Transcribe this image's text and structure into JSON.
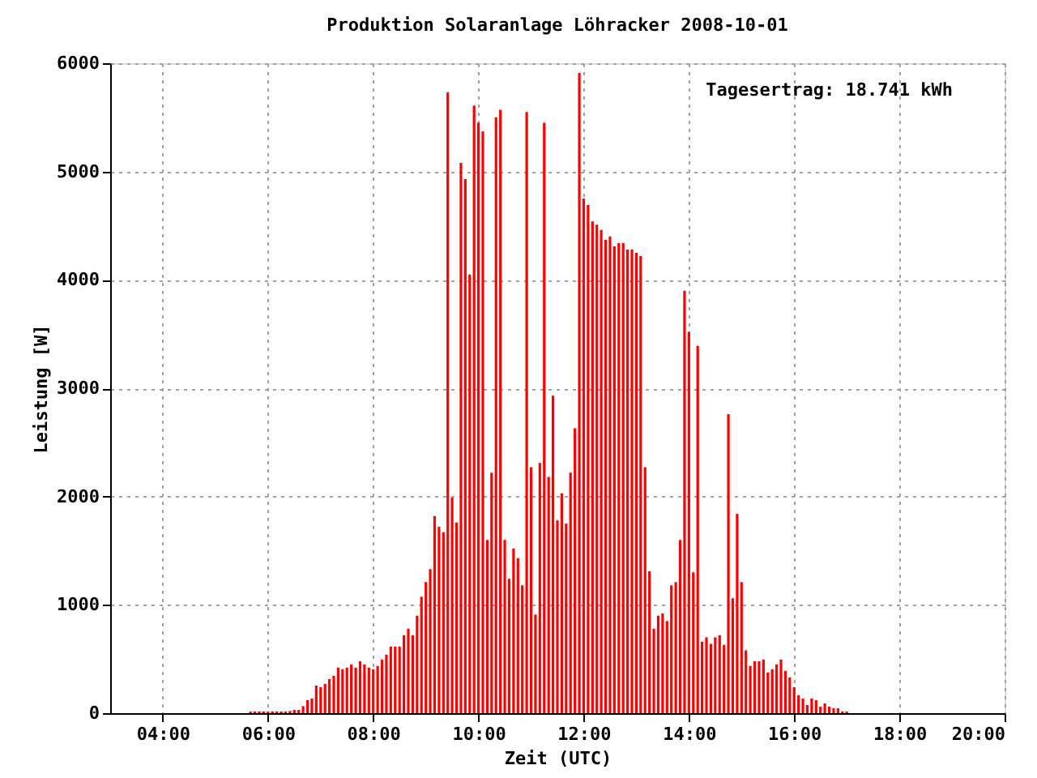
{
  "chart_data": {
    "type": "bar",
    "title": "Produktion Solaranlage Löhracker 2008-10-01",
    "xlabel": "Zeit (UTC)",
    "ylabel": "Leistung [W]",
    "annotations": [
      "Tagesertrag: 18.741 kWh"
    ],
    "x": [
      5.6667,
      5.75,
      5.8333,
      5.9167,
      6,
      6.0833,
      6.1667,
      6.25,
      6.3333,
      6.4167,
      6.5,
      6.5833,
      6.6667,
      6.75,
      6.8333,
      6.9167,
      7,
      7.0833,
      7.1667,
      7.25,
      7.3333,
      7.4167,
      7.5,
      7.5833,
      7.6667,
      7.75,
      7.8333,
      7.9167,
      8,
      8.0833,
      8.1667,
      8.25,
      8.3333,
      8.4167,
      8.5,
      8.5833,
      8.6667,
      8.75,
      8.8333,
      8.9167,
      9,
      9.0833,
      9.1667,
      9.25,
      9.3333,
      9.4167,
      9.5,
      9.5833,
      9.6667,
      9.75,
      9.8333,
      9.9167,
      10,
      10.0833,
      10.1667,
      10.25,
      10.3333,
      10.4167,
      10.5,
      10.5833,
      10.6667,
      10.75,
      10.8333,
      10.9167,
      11,
      11.0833,
      11.1667,
      11.25,
      11.3333,
      11.4167,
      11.5,
      11.5833,
      11.6667,
      11.75,
      11.8333,
      11.9167,
      12,
      12.0833,
      12.1667,
      12.25,
      12.3333,
      12.4167,
      12.5,
      12.5833,
      12.6667,
      12.75,
      12.8333,
      12.9167,
      13,
      13.0833,
      13.1667,
      13.25,
      13.3333,
      13.4167,
      13.5,
      13.5833,
      13.6667,
      13.75,
      13.8333,
      13.9167,
      14,
      14.0833,
      14.1667,
      14.25,
      14.3333,
      14.4167,
      14.5,
      14.5833,
      14.6667,
      14.75,
      14.8333,
      14.9167,
      15,
      15.0833,
      15.1667,
      15.25,
      15.3333,
      15.4167,
      15.5,
      15.5833,
      15.6667,
      15.75,
      15.8333,
      15.9167,
      16,
      16.0833,
      16.1667,
      16.25,
      16.3333,
      16.4167,
      16.5,
      16.5833,
      16.6667,
      16.75,
      16.8333,
      16.9167,
      17
    ],
    "series": [
      {
        "color": "#ff0000",
        "values": [
          15,
          15,
          15,
          15,
          15,
          15,
          15,
          15,
          15,
          20,
          30,
          30,
          65,
          120,
          135,
          255,
          240,
          270,
          315,
          345,
          420,
          405,
          420,
          450,
          420,
          480,
          450,
          420,
          405,
          435,
          495,
          540,
          615,
          615,
          615,
          720,
          780,
          720,
          900,
          1075,
          1210,
          1330,
          1820,
          1720,
          1670,
          5730,
          1990,
          1760,
          5080,
          4930,
          4050,
          5610,
          5450,
          5370,
          1600,
          2220,
          5500,
          5570,
          1600,
          1240,
          1520,
          1430,
          1180,
          5550,
          2270,
          910,
          2310,
          5450,
          2180,
          2930,
          1780,
          2030,
          1750,
          2220,
          2630,
          5910,
          4750,
          4690,
          4540,
          4510,
          4460,
          4370,
          4400,
          4310,
          4340,
          4340,
          4280,
          4280,
          4250,
          4220,
          2270,
          1310,
          780,
          900,
          920,
          850,
          1180,
          1210,
          1600,
          3900,
          3520,
          1300,
          3390,
          660,
          700,
          640,
          700,
          720,
          630,
          2760,
          1060,
          1840,
          1210,
          580,
          435,
          480,
          480,
          495,
          375,
          405,
          450,
          495,
          390,
          330,
          240,
          165,
          135,
          75,
          135,
          120,
          60,
          90,
          60,
          45,
          45,
          15,
          15
        ]
      }
    ],
    "xlim": [
      3,
      20
    ],
    "xticks": [
      {
        "value": 4,
        "label": "04:00"
      },
      {
        "value": 6,
        "label": "06:00"
      },
      {
        "value": 8,
        "label": "08:00"
      },
      {
        "value": 10,
        "label": "10:00"
      },
      {
        "value": 12,
        "label": "12:00"
      },
      {
        "value": 14,
        "label": "14:00"
      },
      {
        "value": 16,
        "label": "16:00"
      },
      {
        "value": 18,
        "label": "18:00"
      },
      {
        "value": 20,
        "label": "20:00"
      }
    ],
    "ylim": [
      0,
      6000
    ],
    "yticks": [
      0,
      1000,
      2000,
      3000,
      4000,
      5000,
      6000
    ],
    "grid": true
  }
}
